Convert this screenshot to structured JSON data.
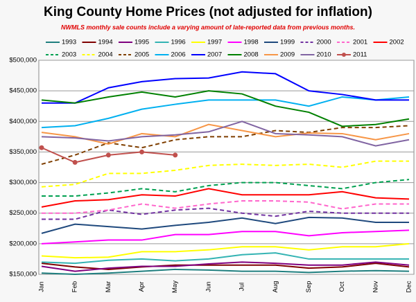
{
  "chart_data": {
    "type": "line",
    "title": "King County Home Prices (not adjusted for inflation)",
    "subtitle": "NWMLS monthly sale counts include a varying amount of late-reported data from previous months.",
    "categories": [
      "Jan",
      "Feb",
      "Mar",
      "Apr",
      "May",
      "Jun",
      "Jul",
      "Aug",
      "Sep",
      "Oct",
      "Nov",
      "Dec"
    ],
    "ylim": [
      150000,
      500000
    ],
    "yticks": [
      {
        "value": 150000,
        "label": "$150,000"
      },
      {
        "value": 200000,
        "label": "$200,000"
      },
      {
        "value": 250000,
        "label": "$250,000"
      },
      {
        "value": 300000,
        "label": "$300,000"
      },
      {
        "value": 350000,
        "label": "$350,000"
      },
      {
        "value": 400000,
        "label": "$400,000"
      },
      {
        "value": 450000,
        "label": "$450,000"
      },
      {
        "value": 500000,
        "label": "$500,000"
      }
    ],
    "grid": true,
    "series": [
      {
        "name": "1993",
        "color": "#1f7f7f",
        "dashed": false,
        "markers": false,
        "values": [
          152000,
          150000,
          152000,
          155000,
          158000,
          157000,
          155000,
          155000,
          153000,
          155000,
          156000,
          155000
        ]
      },
      {
        "name": "1994",
        "color": "#7f0000",
        "dashed": false,
        "markers": false,
        "values": [
          168000,
          162000,
          158000,
          162000,
          165000,
          165000,
          165000,
          165000,
          160000,
          162000,
          168000,
          162000
        ]
      },
      {
        "name": "1995",
        "color": "#7f007f",
        "dashed": false,
        "markers": false,
        "values": [
          163000,
          155000,
          160000,
          163000,
          163000,
          167000,
          170000,
          168000,
          165000,
          165000,
          170000,
          165000
        ]
      },
      {
        "name": "1996",
        "color": "#33b3b3",
        "dashed": false,
        "markers": false,
        "values": [
          170000,
          168000,
          173000,
          175000,
          172000,
          175000,
          182000,
          185000,
          175000,
          175000,
          175000,
          175000
        ]
      },
      {
        "name": "1997",
        "color": "#ffff00",
        "dashed": false,
        "markers": false,
        "values": [
          180000,
          177000,
          178000,
          187000,
          187000,
          190000,
          195000,
          195000,
          190000,
          195000,
          195000,
          200000
        ]
      },
      {
        "name": "1998",
        "color": "#ff00ff",
        "dashed": false,
        "markers": false,
        "values": [
          200000,
          203000,
          206000,
          206000,
          215000,
          215000,
          220000,
          220000,
          213000,
          218000,
          220000,
          222000
        ]
      },
      {
        "name": "1999",
        "color": "#1f497d",
        "dashed": false,
        "markers": false,
        "values": [
          217000,
          232000,
          228000,
          224000,
          230000,
          235000,
          242000,
          233000,
          243000,
          242000,
          235000,
          235000
        ]
      },
      {
        "name": "2000",
        "color": "#7030a0",
        "dashed": true,
        "markers": false,
        "values": [
          240000,
          240000,
          255000,
          248000,
          255000,
          258000,
          250000,
          245000,
          253000,
          250000,
          250000,
          250000
        ]
      },
      {
        "name": "2001",
        "color": "#ff66cc",
        "dashed": true,
        "markers": false,
        "values": [
          250000,
          250000,
          255000,
          265000,
          258000,
          265000,
          270000,
          270000,
          268000,
          257000,
          265000,
          265000
        ]
      },
      {
        "name": "2002",
        "color": "#ff0000",
        "dashed": false,
        "markers": false,
        "values": [
          260000,
          270000,
          272000,
          280000,
          278000,
          290000,
          280000,
          280000,
          280000,
          285000,
          275000,
          273000
        ]
      },
      {
        "name": "2003",
        "color": "#00a050",
        "dashed": true,
        "markers": false,
        "values": [
          278000,
          278000,
          283000,
          290000,
          285000,
          295000,
          300000,
          300000,
          295000,
          290000,
          300000,
          305000
        ]
      },
      {
        "name": "2004",
        "color": "#ffff00",
        "dashed": true,
        "markers": false,
        "values": [
          293000,
          297000,
          315000,
          315000,
          320000,
          328000,
          330000,
          328000,
          330000,
          325000,
          335000,
          335000
        ]
      },
      {
        "name": "2005",
        "color": "#7f3f00",
        "dashed": true,
        "markers": false,
        "values": [
          330000,
          345000,
          365000,
          357000,
          370000,
          375000,
          375000,
          385000,
          382000,
          390000,
          390000,
          393000
        ]
      },
      {
        "name": "2006",
        "color": "#00b0f0",
        "dashed": false,
        "markers": false,
        "values": [
          390000,
          393000,
          405000,
          420000,
          428000,
          435000,
          435000,
          435000,
          425000,
          440000,
          435000,
          440000
        ]
      },
      {
        "name": "2007",
        "color": "#0000ff",
        "dashed": false,
        "markers": false,
        "values": [
          430000,
          430000,
          455000,
          465000,
          470000,
          471000,
          481000,
          478000,
          450000,
          444000,
          435000,
          435000
        ]
      },
      {
        "name": "2008",
        "color": "#008000",
        "dashed": false,
        "markers": false,
        "values": [
          435000,
          430000,
          440000,
          448000,
          440000,
          450000,
          445000,
          425000,
          415000,
          392000,
          395000,
          404000
        ]
      },
      {
        "name": "2009",
        "color": "#f79646",
        "dashed": false,
        "markers": false,
        "values": [
          382000,
          375000,
          363000,
          380000,
          375000,
          395000,
          385000,
          375000,
          381000,
          380000,
          370000,
          380000
        ]
      },
      {
        "name": "2010",
        "color": "#8064a2",
        "dashed": false,
        "markers": false,
        "values": [
          375000,
          373000,
          368000,
          375000,
          378000,
          383000,
          400000,
          380000,
          378000,
          375000,
          360000,
          370000
        ]
      },
      {
        "name": "2011",
        "color": "#c0504d",
        "dashed": false,
        "markers": true,
        "values": [
          357000,
          333000,
          345000,
          350000,
          345000,
          null,
          null,
          null,
          null,
          null,
          null,
          null
        ]
      }
    ]
  }
}
